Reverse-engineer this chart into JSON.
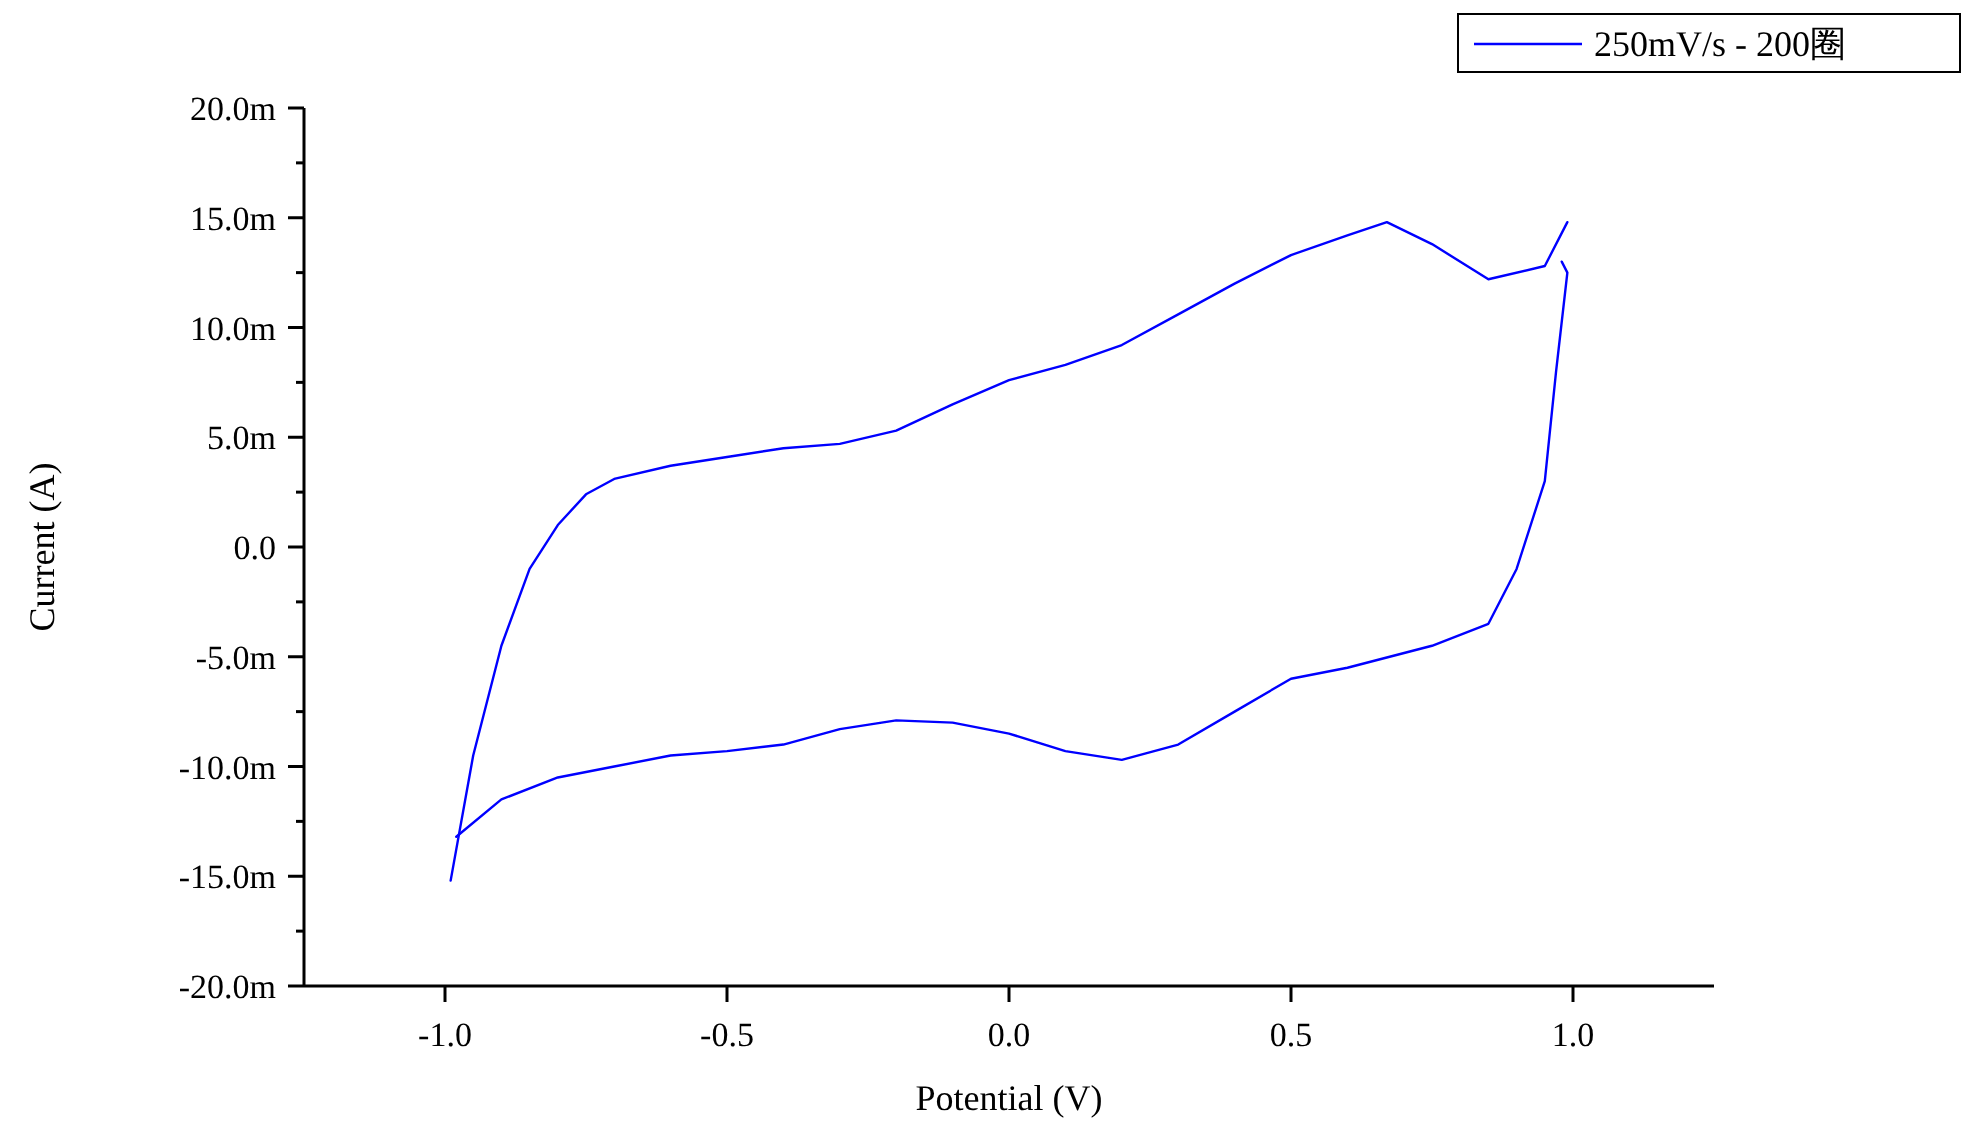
{
  "chart_data": {
    "type": "line",
    "xlabel": "Potential (V)",
    "ylabel": "Current (A)",
    "xlim": [
      -1.25,
      1.25
    ],
    "xticks": [
      {
        "value": -1.0,
        "label": "-1.0"
      },
      {
        "value": -0.5,
        "label": "-0.5"
      },
      {
        "value": 0.0,
        "label": "0.0"
      },
      {
        "value": 0.5,
        "label": "0.5"
      },
      {
        "value": 1.0,
        "label": "1.0"
      }
    ],
    "ylim": [
      -20,
      20
    ],
    "yticks": [
      {
        "value": -20,
        "label": "-20.0m"
      },
      {
        "value": -17.5,
        "label": null
      },
      {
        "value": -15,
        "label": "-15.0m"
      },
      {
        "value": -12.5,
        "label": null
      },
      {
        "value": -10,
        "label": "-10.0m"
      },
      {
        "value": -7.5,
        "label": null
      },
      {
        "value": -5,
        "label": "-5.0m"
      },
      {
        "value": -2.5,
        "label": null
      },
      {
        "value": 0,
        "label": "0.0"
      },
      {
        "value": 2.5,
        "label": null
      },
      {
        "value": 5,
        "label": "5.0m"
      },
      {
        "value": 7.5,
        "label": null
      },
      {
        "value": 10,
        "label": "10.0m"
      },
      {
        "value": 12.5,
        "label": null
      },
      {
        "value": 15,
        "label": "15.0m"
      },
      {
        "value": 17.5,
        "label": null
      },
      {
        "value": 20,
        "label": "20.0m"
      }
    ],
    "legend": "top right",
    "grid": false,
    "marker": "none",
    "line_style": "solid",
    "series": [
      {
        "name": "250mV/s - 200圈",
        "color": "#0000ff",
        "x": [
          -0.99,
          -0.95,
          -0.9,
          -0.85,
          -0.8,
          -0.75,
          -0.7,
          -0.6,
          -0.5,
          -0.4,
          -0.3,
          -0.2,
          -0.1,
          0.0,
          0.1,
          0.2,
          0.3,
          0.4,
          0.5,
          0.6,
          0.67,
          0.75,
          0.85,
          0.95,
          0.99
        ],
        "values": [
          -15.2,
          -9.5,
          -4.5,
          -1.0,
          1.0,
          2.4,
          3.1,
          3.7,
          4.1,
          4.5,
          4.7,
          5.3,
          6.5,
          7.6,
          8.3,
          9.2,
          10.6,
          12.0,
          13.3,
          14.2,
          14.8,
          13.8,
          12.2,
          12.8,
          14.8
        ]
      },
      {
        "color": "#0000ff",
        "x": [
          0.98,
          0.99,
          0.97,
          0.95,
          0.9,
          0.85,
          0.75,
          0.6,
          0.5,
          0.4,
          0.3,
          0.2,
          0.1,
          0.0,
          -0.1,
          -0.2,
          -0.3,
          -0.4,
          -0.5,
          -0.6,
          -0.7,
          -0.8,
          -0.9,
          -0.98
        ],
        "values": [
          13.0,
          12.5,
          8.0,
          3.0,
          -1.0,
          -3.5,
          -4.5,
          -5.5,
          -6.0,
          -7.5,
          -9.0,
          -9.7,
          -9.3,
          -8.5,
          -8.0,
          -7.9,
          -8.3,
          -9.0,
          -9.3,
          -9.5,
          -10.0,
          -10.5,
          -11.5,
          -13.2
        ]
      }
    ]
  }
}
